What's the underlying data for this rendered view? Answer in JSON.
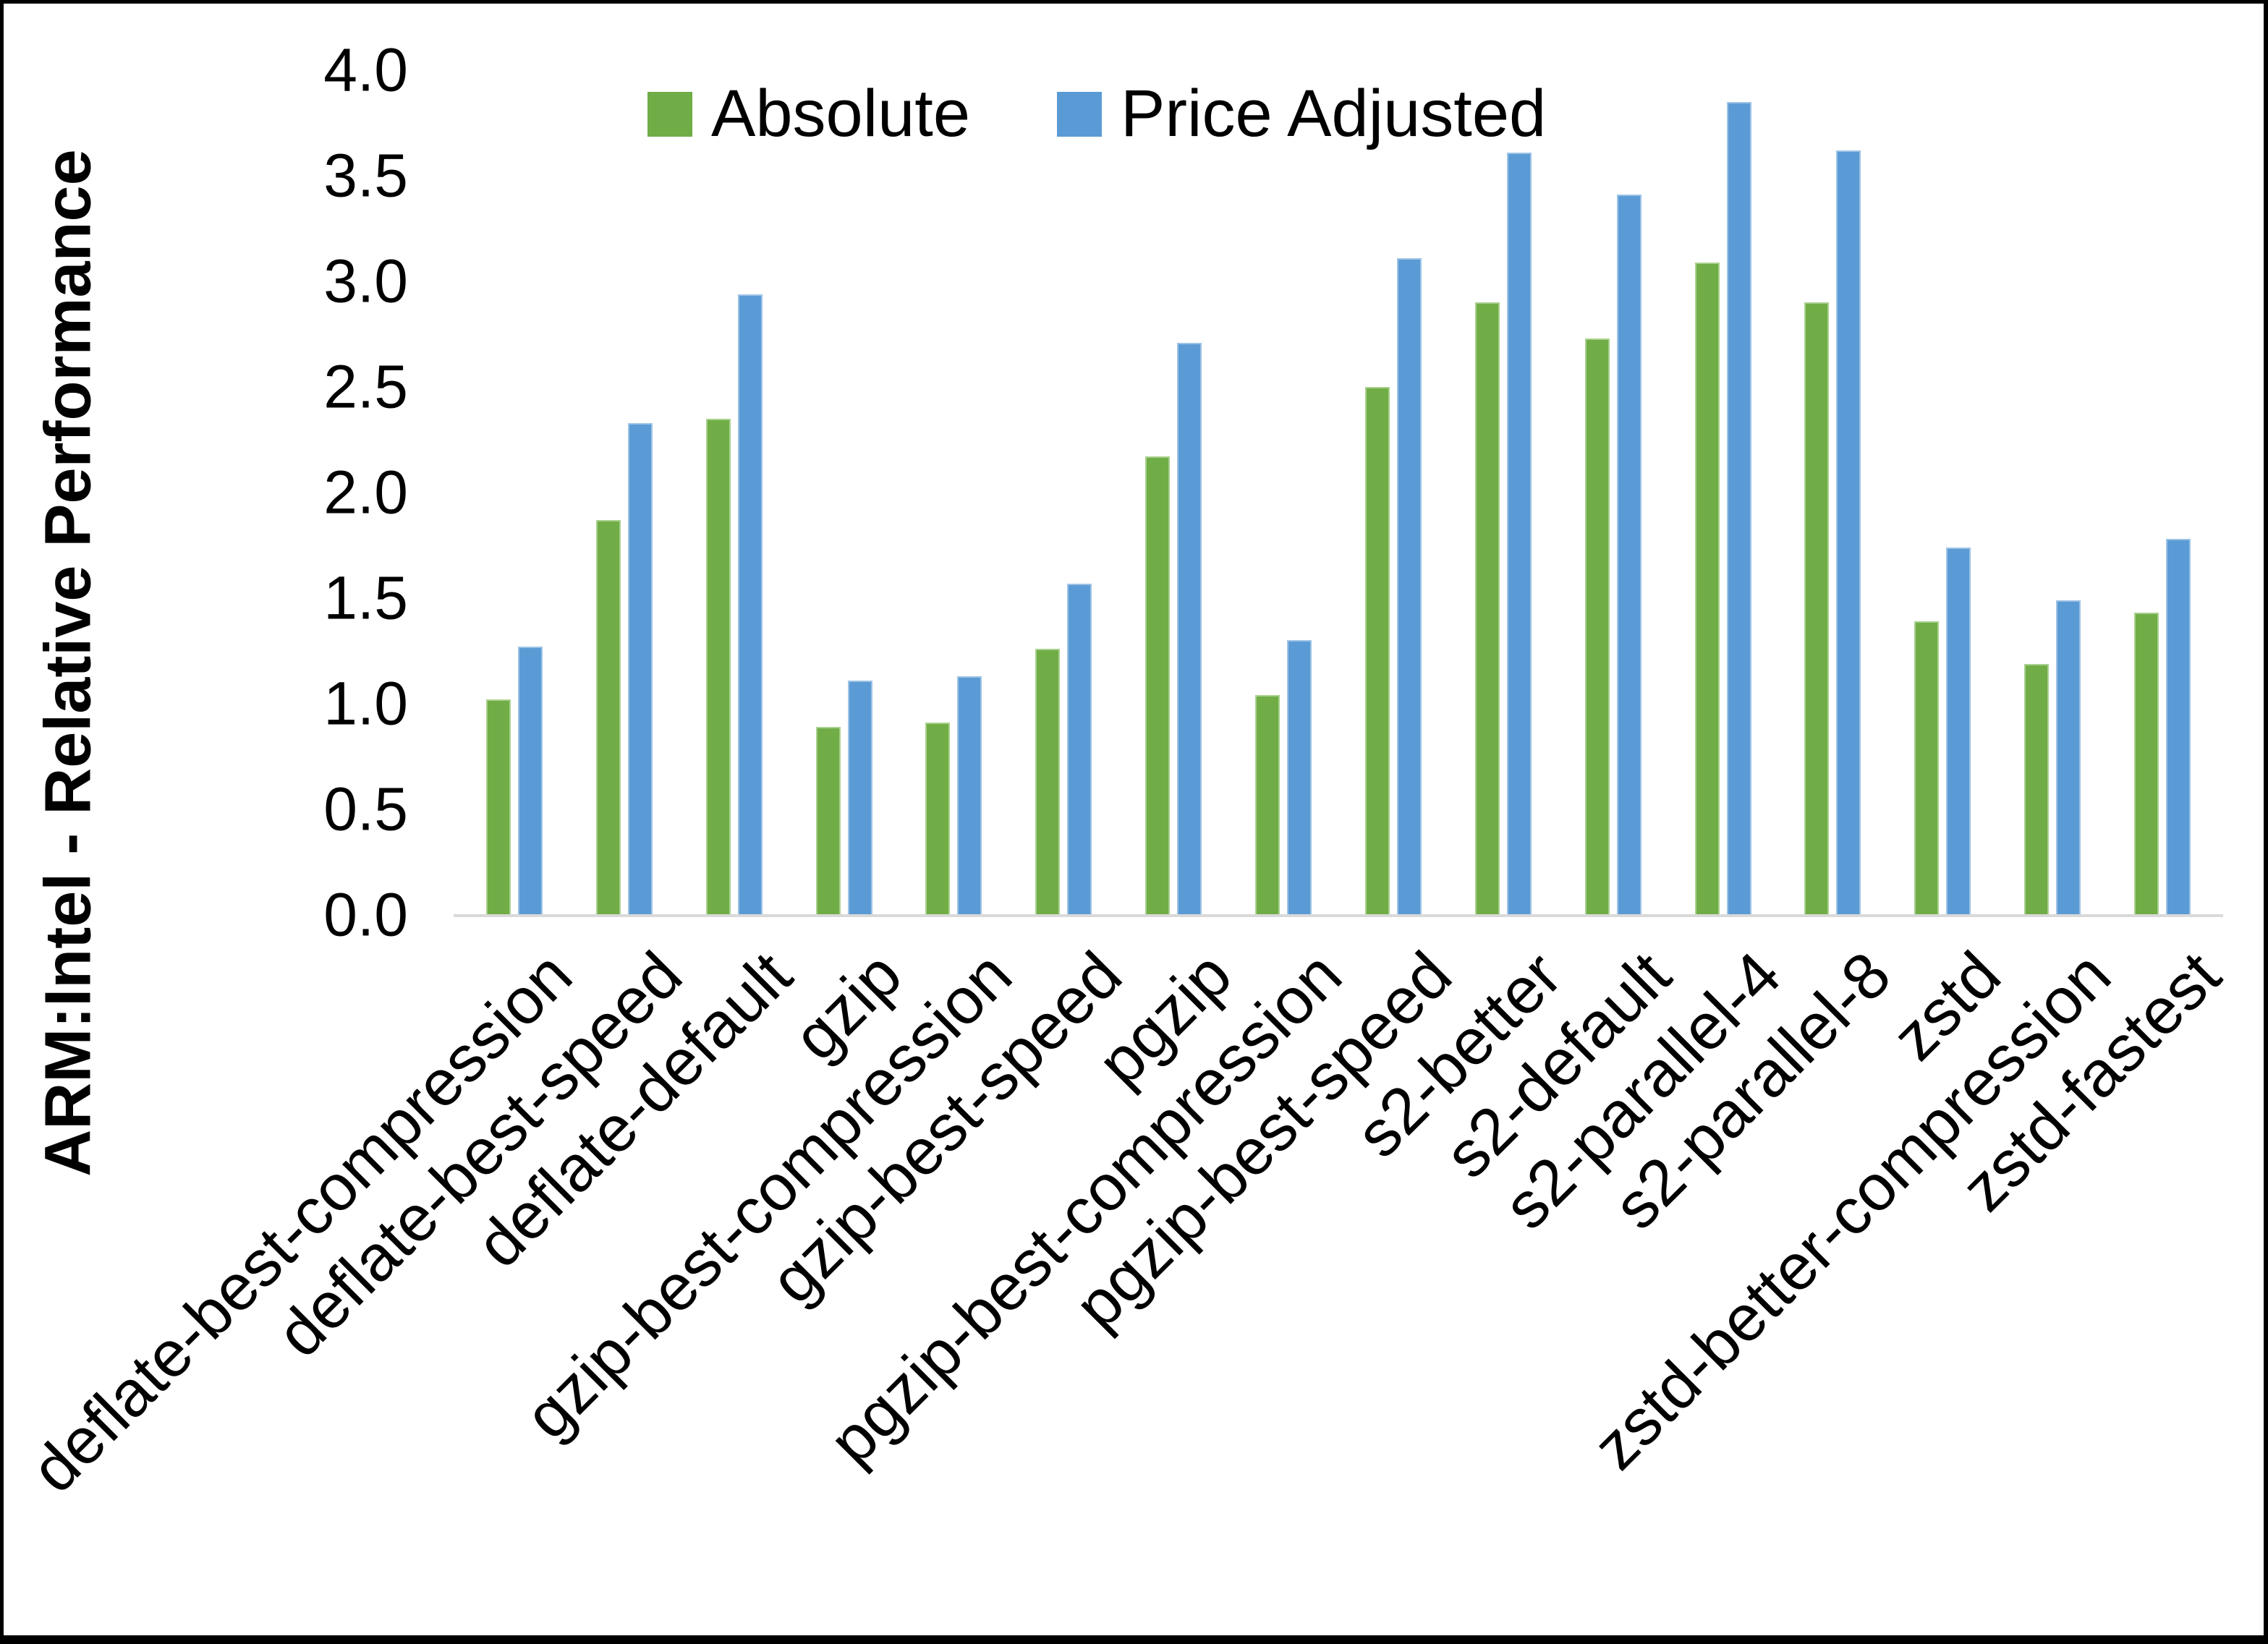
{
  "figure": {
    "border_color": "#000000",
    "background_color": "#ffffff"
  },
  "legend": {
    "items": [
      {
        "label": "Absolute",
        "color": "#70AD47"
      },
      {
        "label": "Price Adjusted",
        "color": "#5B9BD5"
      }
    ],
    "position": "top-center-inside"
  },
  "chart_data": {
    "type": "bar",
    "title": "",
    "xlabel": "",
    "ylabel": "ARM:Intel - Relative Performance",
    "ylim": [
      0.0,
      4.0
    ],
    "ytick_step": 0.5,
    "yticks": [
      "0.0",
      "0.5",
      "1.0",
      "1.5",
      "2.0",
      "2.5",
      "3.0",
      "3.5",
      "4.0"
    ],
    "grid": false,
    "legend_position": "top",
    "categories": [
      "deflate-best-compression",
      "deflate-best-speed",
      "deflate-default",
      "gzip",
      "gzip-best-compression",
      "gzip-best-speed",
      "pgzip",
      "pgzip-best-compression",
      "pgzip-best-speed",
      "s2-better",
      "s2-default",
      "s2-parallel-4",
      "s2-parallel-8",
      "zstd",
      "zstd-better-compression",
      "zstd-fastest"
    ],
    "series": [
      {
        "name": "Absolute",
        "color": "#70AD47",
        "values": [
          1.02,
          1.87,
          2.35,
          0.89,
          0.91,
          1.26,
          2.17,
          1.04,
          2.5,
          2.9,
          2.73,
          3.09,
          2.9,
          1.39,
          1.19,
          1.43
        ]
      },
      {
        "name": "Price Adjusted",
        "color": "#5B9BD5",
        "values": [
          1.27,
          2.33,
          2.94,
          1.11,
          1.13,
          1.57,
          2.71,
          1.3,
          3.11,
          3.61,
          3.41,
          3.85,
          3.62,
          1.74,
          1.49,
          1.78
        ]
      }
    ]
  }
}
